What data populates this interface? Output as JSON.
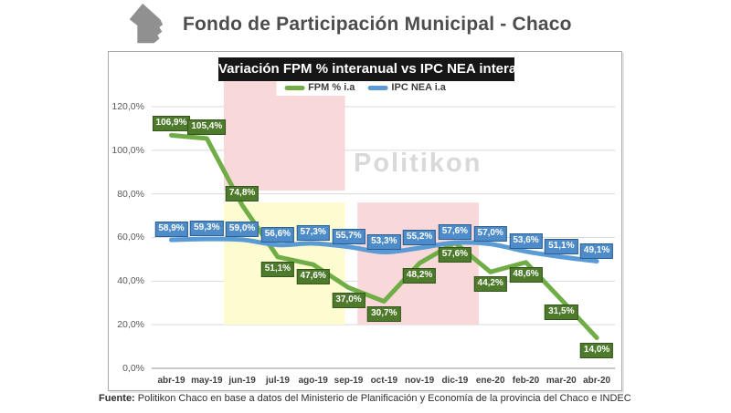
{
  "header": {
    "title": "Fondo de Participación Municipal - Chaco",
    "icon": "chaco-province-icon",
    "icon_color": "#909090"
  },
  "chart": {
    "title": "Variación FPM % interanual vs IPC NEA interanual",
    "title_bg": "#161616",
    "watermark": "Politikon",
    "legend": [
      {
        "label": "FPM % i.a",
        "color": "#70ad47"
      },
      {
        "label": "IPC NEA i.a",
        "color": "#5b9bd5"
      }
    ]
  },
  "chart_data": {
    "type": "line",
    "title": "Variación FPM % interanual vs IPC NEA interanual",
    "categories": [
      "abr-19",
      "may-19",
      "jun-19",
      "jul-19",
      "ago-19",
      "sep-19",
      "oct-19",
      "nov-19",
      "dic-19",
      "ene-20",
      "feb-20",
      "mar-20",
      "abr-20"
    ],
    "series": [
      {
        "name": "FPM % i.a",
        "color": "#70ad47",
        "smooth": false,
        "values": [
          106.9,
          105.4,
          74.8,
          51.1,
          47.6,
          37.0,
          30.7,
          48.2,
          57.6,
          44.2,
          48.6,
          31.5,
          14.0
        ],
        "labels": [
          "106,9%",
          "105,4%",
          "74,8%",
          "51,1%",
          "47,6%",
          "37,0%",
          "30,7%",
          "48,2%",
          "57,6%",
          "44,2%",
          "48,6%",
          "31,5%",
          "14,0%"
        ],
        "label_side": [
          "above",
          "above",
          "above",
          "below",
          "below",
          "below",
          "below",
          "below",
          "below",
          "below",
          "below",
          "below",
          "below"
        ]
      },
      {
        "name": "IPC NEA i.a",
        "color": "#5b9bd5",
        "smooth": true,
        "values": [
          58.9,
          59.3,
          59.0,
          56.6,
          57.3,
          55.7,
          53.3,
          55.2,
          57.6,
          57.0,
          53.6,
          51.1,
          49.1
        ],
        "labels": [
          "58,9%",
          "59,3%",
          "59,0%",
          "56,6%",
          "57,3%",
          "55,7%",
          "53,3%",
          "55,2%",
          "57,6%",
          "57,0%",
          "53,6%",
          "51,1%",
          "49,1%"
        ],
        "label_side": [
          "above",
          "above",
          "above",
          "above",
          "above",
          "above",
          "above",
          "above",
          "above",
          "above",
          "above",
          "above",
          "above"
        ]
      }
    ],
    "y_ticks": [
      {
        "value": 120,
        "label": "120,0%"
      },
      {
        "value": 100,
        "label": "100,0%"
      },
      {
        "value": 80,
        "label": "80,0%"
      },
      {
        "value": 60,
        "label": "60,0%"
      },
      {
        "value": 40,
        "label": "40,0%"
      },
      {
        "value": 20,
        "label": "20,0%"
      },
      {
        "value": 0,
        "label": "0,0%"
      }
    ],
    "ylim": [
      0,
      120
    ],
    "grid": true,
    "grid_color": "#d9d9d9",
    "axis_color": "#a6a6a6",
    "legend_position": "top",
    "regions": [
      {
        "name": "highlight-pink-upper",
        "color": "#f8d8d9",
        "x_from": 1.48,
        "x_to": 4.9,
        "y_from": 81.5,
        "y_to": 132.5
      },
      {
        "name": "highlight-yellow",
        "color": "#fcfcd0",
        "x_from": 1.48,
        "x_to": 4.9,
        "y_from": 20.0,
        "y_to": 76.0
      },
      {
        "name": "highlight-pink-lower",
        "color": "#f8d8d9",
        "x_from": 5.25,
        "x_to": 8.67,
        "y_from": 20.0,
        "y_to": 76.0
      }
    ]
  },
  "footer": {
    "prefix": "Fuente:",
    "text": " Politikon Chaco en base a datos del Ministerio de Planificación y Economía de la provincia del Chaco e INDEC"
  }
}
